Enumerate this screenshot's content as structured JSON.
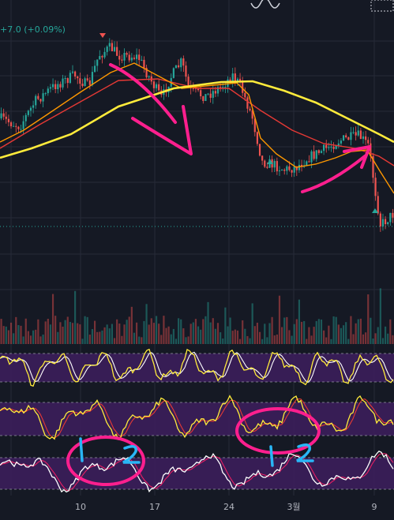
{
  "header": {
    "price_change": "+7.0 (+0.09%)"
  },
  "colors": {
    "background": "#151924",
    "grid": "#262b38",
    "up": "#26a69a",
    "down": "#ef5350",
    "ma_yellow": "#ffeb3b",
    "ma_orange": "#ff9800",
    "ma_red": "#e53935",
    "osc_fill": "#3d1f5e",
    "osc_fast": "#ffeb3b",
    "osc_slow": "#e53935",
    "osc3_fast": "#ffffff",
    "osc3_slow": "#e91e63",
    "annot_pink": "#ff1f8e",
    "annot_blue": "#29b6f6"
  },
  "icons": [
    "wave-icon",
    "dotted-box-icon"
  ],
  "chart_data": {
    "type": "candlestick",
    "x_axis": {
      "tick_labels": [
        "10",
        "17",
        "24",
        "3월",
        "9"
      ]
    },
    "price_panel": {
      "candles_count": 160,
      "moving_averages": [
        "yellow",
        "orange",
        "red"
      ],
      "current_price_line": "dotted-teal"
    },
    "volume_panel": {
      "type": "bar"
    },
    "oscillators": [
      {
        "name": "",
        "lines": [
          "yellow",
          "white"
        ],
        "band": "purple"
      },
      {
        "name": "",
        "lines": [
          "yellow",
          "red"
        ],
        "band": "purple"
      },
      {
        "name": "",
        "lines": [
          "white",
          "red"
        ],
        "band": "purple"
      }
    ],
    "annotations": [
      {
        "type": "arrow",
        "direction": "down",
        "color": "pink"
      },
      {
        "type": "arrow",
        "direction": "up",
        "color": "pink"
      },
      {
        "type": "ellipse",
        "color": "pink",
        "marks": [
          "1",
          "2"
        ]
      },
      {
        "type": "ellipse",
        "color": "pink",
        "marks": [
          "1",
          "2"
        ]
      }
    ],
    "hand_labels": [
      "1",
      "2",
      "1",
      "2"
    ]
  }
}
